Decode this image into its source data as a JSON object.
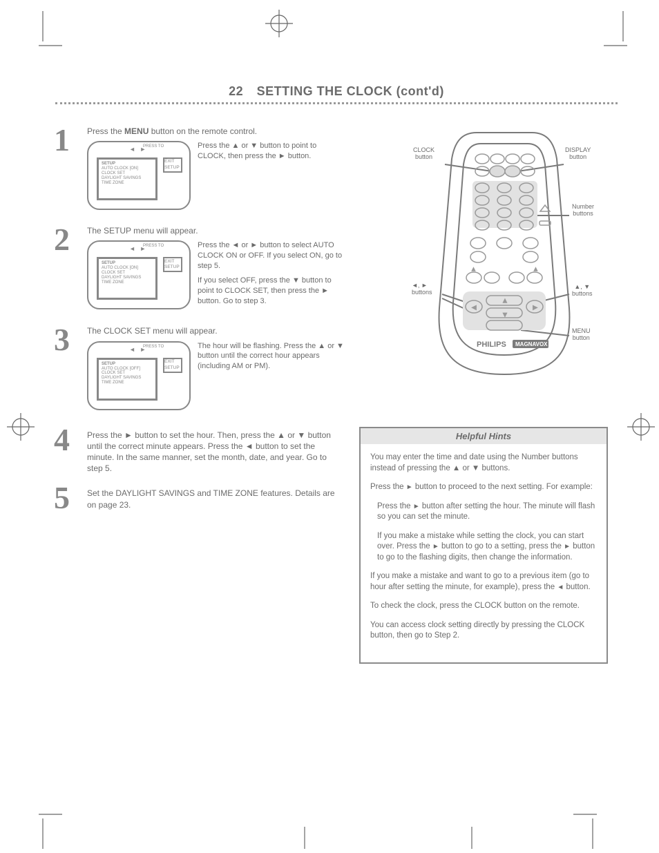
{
  "colors": {
    "text": "#6b6b6b",
    "rule": "#888888",
    "hintsBorder": "#8a8a8a",
    "hintsHeaderBg": "#e6e6e6",
    "background": "#ffffff"
  },
  "header": {
    "pageNumber": "22",
    "title": "SETTING THE CLOCK (cont'd)"
  },
  "arrows": {
    "left": "◄",
    "right": "►"
  },
  "osdCommon": {
    "arrowLabel": "PRESS        TO",
    "sideLabel": "EXIT\nSETUP",
    "line1": "SETUP",
    "line3": "CLOCK SET",
    "line4": "DAYLIGHT SAVINGS",
    "line5": "TIME ZONE"
  },
  "steps": [
    {
      "num": "1",
      "intro": "Press the MENU button on the remote control.",
      "osdLine2": "AUTO CLOCK               [ON]",
      "para1": "Press the ▲ or ▼ button to point to CLOCK, then press the ► button.",
      "para2": ""
    },
    {
      "num": "2",
      "intro": "The SETUP menu will appear.",
      "osdLine2": "AUTO CLOCK               [ON]",
      "para1": "Press the ◄ or ► button to select AUTO CLOCK ON or OFF. If you select ON, go to step 5.",
      "para2": "If you select OFF, press the ▼ button to point to CLOCK SET, then press the ► button. Go to step 3."
    },
    {
      "num": "3",
      "intro": "The CLOCK SET menu will appear.",
      "osdLine2": "AUTO CLOCK              [OFF]",
      "para1": "The hour will be flashing. Press the ▲ or ▼ button until the correct hour appears (including AM or PM).",
      "para2": ""
    }
  ],
  "step4": {
    "num": "4",
    "text": "Press the ► button to set the hour. Then, press the ▲ or ▼ button until the correct minute appears. Press the ◄ button to set the minute. In the same manner, set the month, date, and year. Go to step 5."
  },
  "step5": {
    "num": "5",
    "text": "Set the DAYLIGHT SAVINGS and TIME ZONE features. Details are on page 23."
  },
  "remote": {
    "labels": {
      "clock": "CLOCK\nbutton",
      "number": "Number\nbuttons",
      "search": "▲, ▼\nbuttons",
      "leftRight": "◄, ►\nbuttons",
      "menu": "MENU\nbutton",
      "display": "DISPLAY\nbutton"
    },
    "brand1": "PHILIPS",
    "brand2": "MAGNAVOX"
  },
  "hints": {
    "header": "Helpful Hints",
    "p1": "You may enter the time and date using the Number buttons instead of pressing the ▲ or ▼ buttons.",
    "p2_a": "Press the ",
    "p2_b": " button to proceed to the next setting.  For example:",
    "sub1_a": "Press the ",
    "sub1_b": " button after setting the hour.  The minute will flash so you can set the minute.",
    "sub2_a": "If you make a mistake while setting the clock, you can start over.  Press the ",
    "sub2_b": " button to go to a setting, press the ",
    "sub2_c": " button to go to the flashing digits, then change the information.",
    "p3_a": "If you make a mistake and want to go to a previous item (go to hour after setting the minute, for example), press the ",
    "p3_b": " button.",
    "p4": "To check the clock, press the CLOCK button on the remote.",
    "p5": "You can access clock setting directly by pressing the CLOCK button, then go to Step 2."
  }
}
